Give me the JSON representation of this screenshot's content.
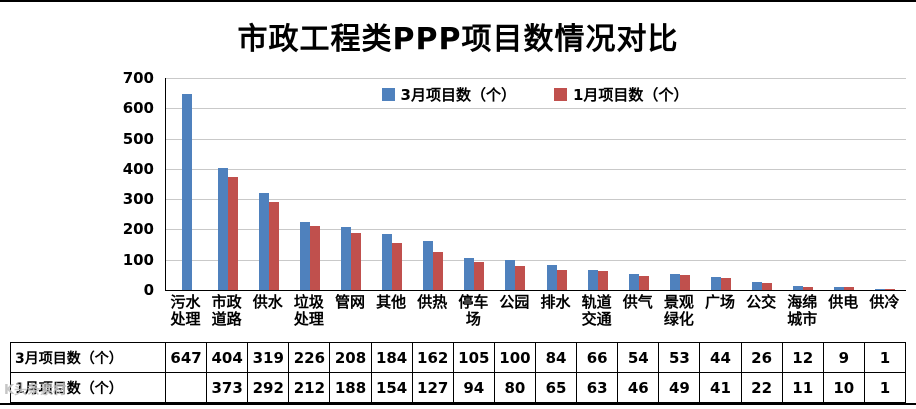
{
  "watermark": {
    "text": "K头条素材"
  },
  "chart_data": {
    "type": "bar",
    "title": "市政工程类PPP项目数情况对比",
    "categories": [
      "污水\n处理",
      "市政\n道路",
      "供水",
      "垃圾\n处理",
      "管网",
      "其他",
      "供热",
      "停车\n场",
      "公园",
      "排水",
      "轨道\n交通",
      "供气",
      "景观\n绿化",
      "广场",
      "公交",
      "海绵\n城市",
      "供电",
      "供冷"
    ],
    "series": [
      {
        "name": "3月项目数（个）",
        "color": "#4f81bd",
        "values": [
          647,
          404,
          319,
          226,
          208,
          184,
          162,
          105,
          100,
          84,
          66,
          54,
          53,
          44,
          26,
          12,
          9,
          1
        ]
      },
      {
        "name": "1月项目数（个）",
        "color": "#c0504d",
        "values": [
          null,
          373,
          292,
          212,
          188,
          154,
          127,
          94,
          80,
          65,
          63,
          46,
          49,
          41,
          22,
          11,
          10,
          1
        ]
      }
    ],
    "ylim": [
      0,
      700
    ],
    "ytick_step": 100,
    "grid": true,
    "legend_position": "top-center",
    "grid_color": "#c9c9c9",
    "axis_color": "#000000"
  }
}
